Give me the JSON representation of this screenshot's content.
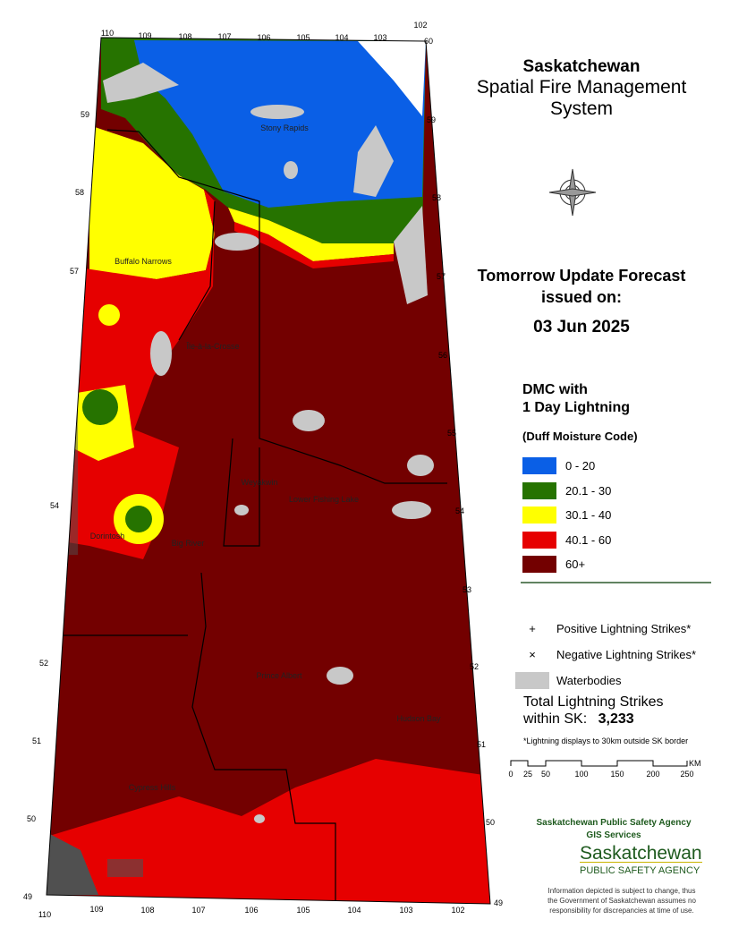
{
  "header": {
    "title": "Saskatchewan",
    "subtitle_line1": "Spatial Fire Management",
    "subtitle_line2": "System"
  },
  "forecast": {
    "line1": "Tomorrow Update Forecast",
    "line2": "issued on:",
    "date": "03 Jun 2025"
  },
  "legend": {
    "title_line1": "DMC with",
    "title_line2": "1 Day Lightning",
    "subtitle": "(Duff Moisture Code)",
    "items": [
      {
        "label": "0 - 20",
        "color": "#0a5fe6"
      },
      {
        "label": "20.1 - 30",
        "color": "#267300"
      },
      {
        "label": "30.1 - 40",
        "color": "#ffff00"
      },
      {
        "label": "40.1 - 60",
        "color": "#e60000"
      },
      {
        "label": "60+",
        "color": "#730000"
      }
    ],
    "symbols": [
      {
        "symbol": "+",
        "label": "Positive Lightning Strikes*"
      },
      {
        "symbol": "×",
        "label": "Negative Lightning Strikes*"
      },
      {
        "label": "Waterbodies"
      }
    ]
  },
  "strikes": {
    "label_line1": "Total Lightning Strikes",
    "label_line2": "within SK:",
    "total": "3,233",
    "note": "*Lightning displays to 30km outside SK border"
  },
  "scale": {
    "labels": [
      "0",
      "25",
      "50",
      "100",
      "150",
      "200",
      "250"
    ],
    "unit": "KM"
  },
  "agency": {
    "line1": "Saskatchewan Public Safety Agency",
    "line2": "GIS  Services",
    "logo_line1": "Saskatchewan",
    "logo_line2": "PUBLIC SAFETY AGENCY"
  },
  "disclaimer": [
    "Information depicted is subject to change, thus",
    "the Government of Saskatchewan assumes no",
    "responsibility for discrepancies at time of use."
  ],
  "map": {
    "places": [
      "Stony Rapids",
      "Buffalo Narrows",
      "Île-à-la-Crosse",
      "Weyakwin",
      "Lower Fishing Lake",
      "Dorintosh",
      "Big River",
      "Prince Albert",
      "Hudson Bay",
      "Cypress Hills"
    ],
    "lat_left": [
      "59",
      "58",
      "57",
      "54",
      "52",
      "51",
      "50",
      "49"
    ],
    "lat_right": [
      "59",
      "58",
      "57",
      "56",
      "55",
      "54",
      "53",
      "52",
      "51",
      "50",
      "49"
    ],
    "lon_top": [
      "110",
      "109",
      "108",
      "107",
      "106",
      "105",
      "104",
      "103",
      "102",
      "60"
    ],
    "lon_bottom": [
      "110",
      "109",
      "108",
      "107",
      "106",
      "105",
      "104",
      "103",
      "102"
    ]
  }
}
